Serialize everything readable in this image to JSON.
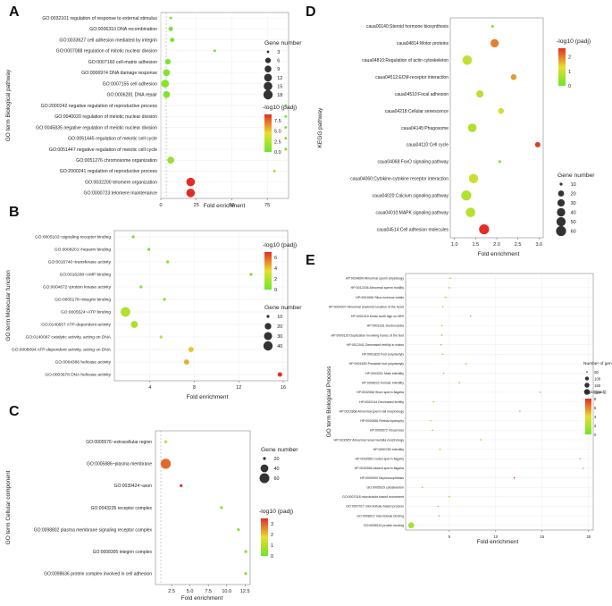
{
  "panels": {
    "a": "A",
    "b": "B",
    "c": "C",
    "d": "D",
    "e": "E"
  },
  "chart_data": [
    {
      "id": "A",
      "type": "scatter",
      "xlabel": "Fold enrichment",
      "ylabel": "GO term Biological pathway",
      "xlim": [
        0,
        90
      ],
      "xticks": [
        0,
        25,
        50,
        75
      ],
      "size_legend_title": "Gene number",
      "size_legend_values": [
        3,
        6,
        9,
        12,
        15,
        18
      ],
      "color_legend_title": "-log10 (padj)",
      "color_ticks": [
        0.0,
        2.5,
        5.0,
        7.5
      ],
      "color_range": [
        0,
        9
      ],
      "points": [
        {
          "term": "GO:0032101 regulation of response to external stimulus",
          "x": 7,
          "size": 3,
          "padj": 0.4
        },
        {
          "term": "GO:0006310 DNA recombination",
          "x": 7,
          "size": 4,
          "padj": 0.4
        },
        {
          "term": "GO:0033627 cell adhesion mediated by integrin",
          "x": 8,
          "size": 4,
          "padj": 0.4
        },
        {
          "term": "GO:0007088 regulation of mitotic nuclear division",
          "x": 38,
          "size": 2,
          "padj": 0.3
        },
        {
          "term": "GO:0007160 cell-matrix adhesion",
          "x": 5,
          "size": 6,
          "padj": 0.5
        },
        {
          "term": "GO:0006974 DNA damage response",
          "x": 4,
          "size": 9,
          "padj": 0.8
        },
        {
          "term": "GO:0007155 cell adhesion",
          "x": 3,
          "size": 12,
          "padj": 1.0
        },
        {
          "term": "GO:0006281 DNA repair",
          "x": 4,
          "size": 9,
          "padj": 0.7
        },
        {
          "term": "GO:2000242 negative regulation of reproductive process",
          "x": 88,
          "size": 2,
          "padj": 0.2
        },
        {
          "term": "GO:0040020 regulation of meiotic nuclear division",
          "x": 88,
          "size": 2,
          "padj": 0.2
        },
        {
          "term": "GO:0045835 negative regulation of meiotic nuclear division",
          "x": 88,
          "size": 2,
          "padj": 0.2
        },
        {
          "term": "GO:0051445 regulation of meiotic cell cycle",
          "x": 88,
          "size": 2,
          "padj": 0.2
        },
        {
          "term": "GO:0051447 negative regulation of meiotic cell cycle",
          "x": 88,
          "size": 2,
          "padj": 0.2
        },
        {
          "term": "GO:0051276 chromosome organization",
          "x": 7,
          "size": 9,
          "padj": 1.5
        },
        {
          "term": "GO:2000241 regulation of reproductive process",
          "x": 80,
          "size": 3,
          "padj": 2.0
        },
        {
          "term": "GO:0032200 telomere organization",
          "x": 21,
          "size": 15,
          "padj": 9.0
        },
        {
          "term": "GO:0000723 telomere maintenance",
          "x": 21,
          "size": 15,
          "padj": 9.0
        }
      ]
    },
    {
      "id": "B",
      "type": "scatter",
      "xlabel": "Fold enrichment",
      "ylabel": "GO term Molecular function",
      "xlim": [
        0.8,
        16.4
      ],
      "xticks": [
        4,
        8,
        12,
        16
      ],
      "size_legend_title": "Gene number",
      "size_legend_values": [
        10,
        20,
        30,
        40
      ],
      "color_legend_title": "-log10 (padj)",
      "color_ticks": [
        0,
        2,
        4,
        6
      ],
      "color_range": [
        0,
        7
      ],
      "points": [
        {
          "term": "GO:0005102~signaling receptor binding",
          "x": 2.5,
          "size": 6,
          "padj": 0.5
        },
        {
          "term": "GO:0008201~heparin binding",
          "x": 3.9,
          "size": 4,
          "padj": 0.4
        },
        {
          "term": "GO:0016740~transferase activity",
          "x": 5.6,
          "size": 4,
          "padj": 0.5
        },
        {
          "term": "GO:0016208~AMP binding",
          "x": 13.1,
          "size": 2,
          "padj": 0.6
        },
        {
          "term": "GO:0004672~protein kinase activity",
          "x": 3.2,
          "size": 10,
          "padj": 0.8
        },
        {
          "term": "GO:0005178~integrin binding",
          "x": 5.3,
          "size": 6,
          "padj": 0.8
        },
        {
          "term": "GO:0005524~ATP binding",
          "x": 1.8,
          "size": 42,
          "padj": 2.0
        },
        {
          "term": "GO:0140657 ATP-dependent activity",
          "x": 2.6,
          "size": 22,
          "padj": 1.8
        },
        {
          "term": "GO:0140097 catalytic activity, acting on DNA",
          "x": 5.0,
          "size": 10,
          "padj": 2.5
        },
        {
          "term": "GO:0008094 ATP-dependent activity, acting on DNA",
          "x": 7.7,
          "size": 14,
          "padj": 4.0
        },
        {
          "term": "GO:0004386 helicase activity",
          "x": 7.3,
          "size": 14,
          "padj": 4.5
        },
        {
          "term": "GO:0003678 DNA helicase activity",
          "x": 15.7,
          "size": 12,
          "padj": 7.0
        }
      ]
    },
    {
      "id": "C",
      "type": "scatter",
      "xlabel": "Fold enrichment",
      "ylabel": "GO term Cellular component",
      "xlim": [
        0.3,
        13.2
      ],
      "xticks": [
        2.5,
        5.0,
        7.5,
        10.0,
        12.5
      ],
      "size_legend_title": "Gene number",
      "size_legend_values": [
        20,
        40,
        60
      ],
      "color_legend_title": "-log10 (padj)",
      "color_ticks": [
        0,
        1,
        2,
        3
      ],
      "color_range": [
        0,
        3.5
      ],
      "points": [
        {
          "term": "GO:0005576~extracellular region",
          "x": 1.7,
          "size": 18,
          "padj": 1.3
        },
        {
          "term": "GO:0005886~plasma membrane",
          "x": 1.7,
          "size": 62,
          "padj": 2.9
        },
        {
          "term": "GO:0030424~axon",
          "x": 3.8,
          "size": 10,
          "padj": 3.5
        },
        {
          "term": "GO:0043235 receptor complex",
          "x": 9.3,
          "size": 3,
          "padj": 0.5
        },
        {
          "term": "GO:0098802 plasma membrane signaling receptor complex",
          "x": 11.6,
          "size": 3,
          "padj": 0.5
        },
        {
          "term": "GO:0008305 integrin complex",
          "x": 12.6,
          "size": 3,
          "padj": 0.4
        },
        {
          "term": "GO:0098636 protein complex involved in cell adhesion",
          "x": 12.6,
          "size": 3,
          "padj": 0.4
        }
      ]
    },
    {
      "id": "D",
      "type": "scatter",
      "xlabel": "Fold enrichment",
      "ylabel": "KEGG pathway",
      "xlim": [
        0.9,
        3.1
      ],
      "xticks": [
        1.0,
        1.5,
        2.0,
        2.5,
        3.0
      ],
      "size_legend_title": "Gene number",
      "size_legend_values": [
        10,
        20,
        30,
        40,
        50,
        60
      ],
      "color_legend_title": "-log10 (padj)",
      "color_ticks": [
        0,
        1,
        2
      ],
      "color_range": [
        0,
        2.6
      ],
      "points": [
        {
          "term": "caua00140:Steroid hormone biosynthesis",
          "x": 1.9,
          "size": 6,
          "padj": 0.4
        },
        {
          "term": "caua04814:Motor proteins",
          "x": 1.95,
          "size": 38,
          "padj": 2.0
        },
        {
          "term": "caua04810:Regulation of actin cytoskeleton",
          "x": 1.3,
          "size": 50,
          "padj": 0.9
        },
        {
          "term": "caua04512:ECM-receptor interaction",
          "x": 2.4,
          "size": 18,
          "padj": 1.8
        },
        {
          "term": "caua04510:Focal adhesion",
          "x": 1.6,
          "size": 28,
          "padj": 0.8
        },
        {
          "term": "caua04218:Cellular senescence",
          "x": 2.1,
          "size": 18,
          "padj": 1.1
        },
        {
          "term": "caua04145:Phagosome",
          "x": 1.42,
          "size": 42,
          "padj": 0.7
        },
        {
          "term": "caua04110:Cell cycle",
          "x": 2.97,
          "size": 16,
          "padj": 2.5
        },
        {
          "term": "caua04068:FoxO signaling pathway",
          "x": 2.07,
          "size": 9,
          "padj": 0.4
        },
        {
          "term": "caua04060:Cytokine-cytokine receptor interaction",
          "x": 1.45,
          "size": 50,
          "padj": 1.0
        },
        {
          "term": "caua04020:Calcium signaling pathway",
          "x": 1.28,
          "size": 58,
          "padj": 0.7
        },
        {
          "term": "caua04010:MAPK signaling pathway",
          "x": 1.38,
          "size": 52,
          "padj": 0.8
        },
        {
          "term": "caua04514:Cell adhesion molecules",
          "x": 1.7,
          "size": 60,
          "padj": 2.6
        }
      ]
    },
    {
      "id": "E",
      "type": "scatter",
      "xlabel": "Fold enrichment",
      "ylabel": "GO term Biological Process",
      "xlim": [
        0.3,
        20.5
      ],
      "xticks": [
        5,
        10,
        15,
        20
      ],
      "size_legend_title": "Number of genes",
      "size_legend_values": [
        50,
        100,
        150,
        200
      ],
      "color_legend_title": "-log10(padj)",
      "color_ticks": [
        0,
        2,
        4,
        6,
        8
      ],
      "color_range": [
        0,
        8
      ],
      "points": [
        {
          "term": "HP:0034809 Abnormal sperm physiology",
          "x": 5.1,
          "size": 20,
          "padj": 0.8
        },
        {
          "term": "HP:0012206 Abnormal sperm motility",
          "x": 5.0,
          "size": 20,
          "padj": 0.8
        },
        {
          "term": "HP:0001696 Situs inversus totalis",
          "x": 4.6,
          "size": 20,
          "padj": 0.8
        },
        {
          "term": "HP:0004307 Abnormal anatomic location of the heart",
          "x": 4.3,
          "size": 20,
          "padj": 0.7
        },
        {
          "term": "HP:0002415 Molar tooth sign on MRI",
          "x": 7.3,
          "size": 10,
          "padj": 0.4
        },
        {
          "term": "HP:0001631 Dextrocardia",
          "x": 4.2,
          "size": 20,
          "padj": 0.7
        },
        {
          "term": "HP:0009126 Duplication involving bones of the feet",
          "x": 4.2,
          "size": 20,
          "padj": 0.7
        },
        {
          "term": "HP:0012041 Decreased fertility in males",
          "x": 4.1,
          "size": 20,
          "padj": 0.7
        },
        {
          "term": "HP:0001829 Foot polydactyly",
          "x": 4.3,
          "size": 20,
          "padj": 0.7
        },
        {
          "term": "HP:0001830 Postaxial foot polydactyly",
          "x": 6.8,
          "size": 10,
          "padj": 0.5
        },
        {
          "term": "HP:0003251 Male infertility",
          "x": 4.4,
          "size": 20,
          "padj": 0.7
        },
        {
          "term": "HP:0008222 Female infertility",
          "x": 6.1,
          "size": 10,
          "padj": 0.5
        },
        {
          "term": "HP:0032558 Short sperm flagella",
          "x": 14.8,
          "size": 8,
          "padj": 0.4
        },
        {
          "term": "HP:0000144 Decreased fertility",
          "x": 3.3,
          "size": 30,
          "padj": 0.9
        },
        {
          "term": "HP:0012868 Abnormal sperm tail morphology",
          "x": 12.6,
          "size": 8,
          "padj": 0.4
        },
        {
          "term": "HP:0000556 Retinal dystrophy",
          "x": 3.0,
          "size": 40,
          "padj": 1.4
        },
        {
          "term": "HP:0000572 Visual loss",
          "x": 3.2,
          "size": 30,
          "padj": 0.9
        },
        {
          "term": "HP:0100957 Abnormal renal medulla morphology",
          "x": 8.4,
          "size": 10,
          "padj": 0.4
        },
        {
          "term": "HP:0000789 Infertility",
          "x": 4.0,
          "size": 30,
          "padj": 1.3
        },
        {
          "term": "HP:0032559 Coiled sperm flagella",
          "x": 19.1,
          "size": 8,
          "padj": 0.4
        },
        {
          "term": "HP:0032556 Absent sperm flagella",
          "x": 19.4,
          "size": 8,
          "padj": 0.4
        },
        {
          "term": "HP:0000090 Nephronophthisis",
          "x": 12.0,
          "size": 10,
          "padj": 8.0
        },
        {
          "term": "GO:0005929 cytoskeleton",
          "x": 2.1,
          "size": 50,
          "padj": 1.1
        },
        {
          "term": "GO:0007018 microtubule-based movement",
          "x": 5.0,
          "size": 20,
          "padj": 0.5
        },
        {
          "term": "GO:0007017 microtubule-based process",
          "x": 3.8,
          "size": 20,
          "padj": 0.5
        },
        {
          "term": "GO:0008017 microtubule binding",
          "x": 3.9,
          "size": 20,
          "padj": 0.6
        },
        {
          "term": "GO:0005515 protein binding",
          "x": 0.9,
          "size": 200,
          "padj": 1.6
        }
      ]
    }
  ]
}
